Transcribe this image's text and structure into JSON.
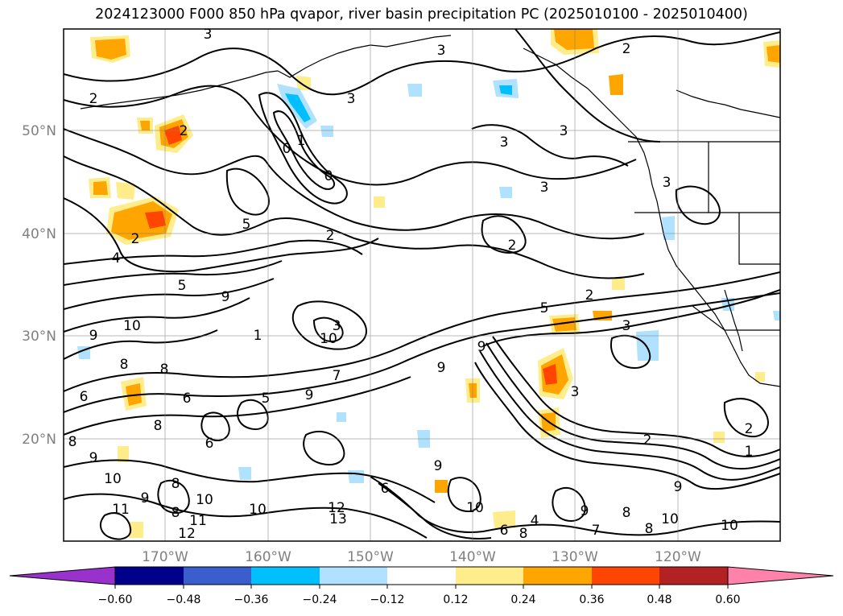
{
  "title": "2024123000 F000 850 hPa qvapor, river basin precipitation PC (2025010100 - 2025010400)",
  "lat_labels": [
    "50°N",
    "40°N",
    "30°N",
    "20°N"
  ],
  "lon_labels": [
    "170°W",
    "160°W",
    "150°W",
    "140°W",
    "130°W",
    "120°W"
  ],
  "contour_labels": [
    "3",
    "2",
    "3",
    "3",
    "2",
    "3",
    "1",
    "0",
    "2",
    "3",
    "0",
    "3",
    "5",
    "4",
    "2",
    "2",
    "2",
    "3",
    "3",
    "5",
    "9",
    "10",
    "1",
    "5",
    "9",
    "8",
    "10",
    "9",
    "7",
    "8",
    "8",
    "6",
    "9",
    "5",
    "6",
    "6",
    "9",
    "3",
    "2",
    "2",
    "1",
    "8",
    "9",
    "8",
    "9",
    "10",
    "11",
    "10",
    "10",
    "12",
    "13",
    "6",
    "8",
    "9",
    "10",
    "9",
    "8",
    "6",
    "4",
    "11",
    "12",
    "8",
    "7",
    "8",
    "9",
    "10",
    "10",
    "3",
    "2"
  ],
  "colorbar": {
    "colors": [
      "#9932cc",
      "#00008b",
      "#3a5fcd",
      "#00bfff",
      "#b0e2ff",
      "#ffffff",
      "#ffec8b",
      "#ffa500",
      "#ff4500",
      "#b22222",
      "#ff82ab"
    ],
    "tick_labels": [
      "−0.60",
      "−0.48",
      "−0.36",
      "−0.24",
      "−0.12",
      "0.12",
      "0.24",
      "0.36",
      "0.48",
      "0.60"
    ]
  }
}
